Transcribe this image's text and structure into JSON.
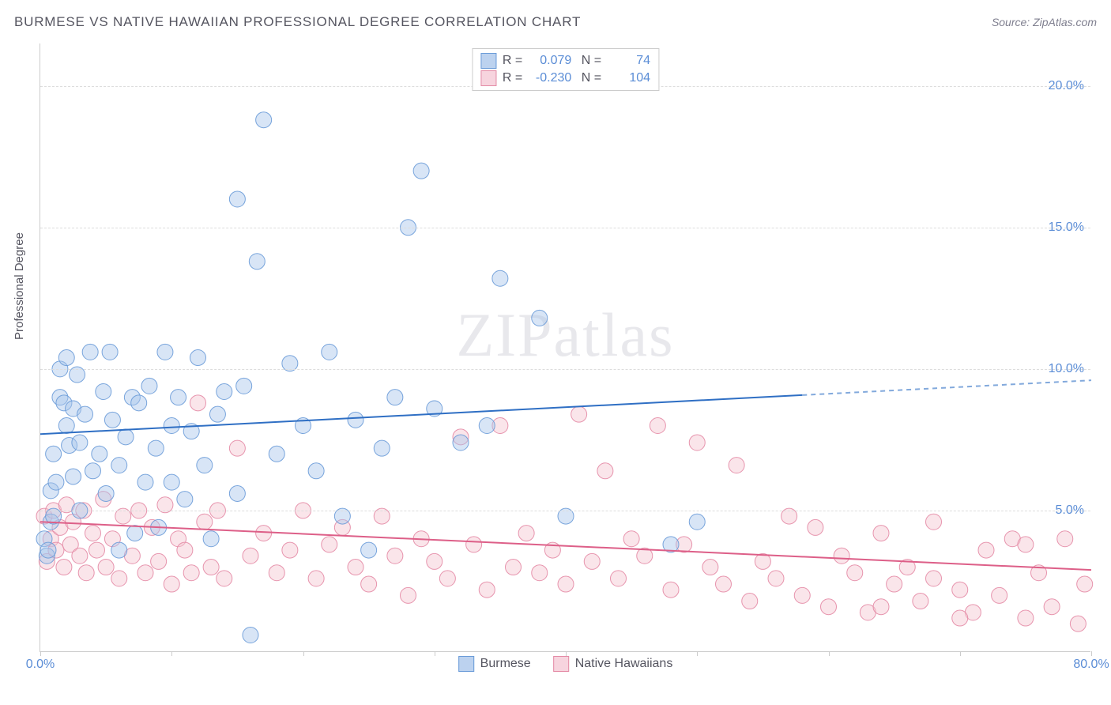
{
  "title": "BURMESE VS NATIVE HAWAIIAN PROFESSIONAL DEGREE CORRELATION CHART",
  "source": "Source: ZipAtlas.com",
  "watermark": "ZIPatlas",
  "y_axis_label": "Professional Degree",
  "chart": {
    "type": "scatter",
    "xlim": [
      0,
      80
    ],
    "ylim": [
      0,
      21.5
    ],
    "x_ticks_major": [
      0,
      10,
      20,
      30,
      40,
      50,
      60,
      70,
      80
    ],
    "x_tick_labels": {
      "0": "0.0%",
      "80": "80.0%"
    },
    "y_ticks": [
      5,
      10,
      15,
      20
    ],
    "y_tick_labels": {
      "5": "5.0%",
      "10": "10.0%",
      "15": "15.0%",
      "20": "20.0%"
    },
    "background_color": "#ffffff",
    "grid_color": "#dddddd",
    "axis_color": "#cccccc",
    "tick_label_color": "#5b8dd6",
    "marker_radius": 10,
    "marker_opacity": 0.45,
    "marker_stroke_opacity": 0.9,
    "series": [
      {
        "name": "Burmese",
        "color_fill": "#a9c6ec",
        "color_stroke": "#6a9bd8",
        "legend_swatch_fill": "#bcd2ef",
        "legend_swatch_border": "#6a9bd8",
        "R": "0.079",
        "N": "74",
        "trend": {
          "y_at_x0": 7.7,
          "y_at_x80": 9.6,
          "solid_until_x": 58,
          "color": "#2f6fc4",
          "width": 2
        },
        "points": [
          [
            0.3,
            4.0
          ],
          [
            0.5,
            3.4
          ],
          [
            0.6,
            3.6
          ],
          [
            0.8,
            4.6
          ],
          [
            0.8,
            5.7
          ],
          [
            1.0,
            4.8
          ],
          [
            1.0,
            7.0
          ],
          [
            1.2,
            6.0
          ],
          [
            1.5,
            9.0
          ],
          [
            1.5,
            10.0
          ],
          [
            1.8,
            8.8
          ],
          [
            2.0,
            8.0
          ],
          [
            2.0,
            10.4
          ],
          [
            2.2,
            7.3
          ],
          [
            2.5,
            6.2
          ],
          [
            2.5,
            8.6
          ],
          [
            2.8,
            9.8
          ],
          [
            3.0,
            5.0
          ],
          [
            3.0,
            7.4
          ],
          [
            3.4,
            8.4
          ],
          [
            3.8,
            10.6
          ],
          [
            4.0,
            6.4
          ],
          [
            4.5,
            7.0
          ],
          [
            4.8,
            9.2
          ],
          [
            5.0,
            5.6
          ],
          [
            5.3,
            10.6
          ],
          [
            5.5,
            8.2
          ],
          [
            6.0,
            3.6
          ],
          [
            6.0,
            6.6
          ],
          [
            6.5,
            7.6
          ],
          [
            7.0,
            9.0
          ],
          [
            7.2,
            4.2
          ],
          [
            7.5,
            8.8
          ],
          [
            8.0,
            6.0
          ],
          [
            8.3,
            9.4
          ],
          [
            8.8,
            7.2
          ],
          [
            9.0,
            4.4
          ],
          [
            9.5,
            10.6
          ],
          [
            10.0,
            6.0
          ],
          [
            10.0,
            8.0
          ],
          [
            10.5,
            9.0
          ],
          [
            11.0,
            5.4
          ],
          [
            11.5,
            7.8
          ],
          [
            12.0,
            10.4
          ],
          [
            12.5,
            6.6
          ],
          [
            13.0,
            4.0
          ],
          [
            13.5,
            8.4
          ],
          [
            14.0,
            9.2
          ],
          [
            15.0,
            5.6
          ],
          [
            15.0,
            16.0
          ],
          [
            15.5,
            9.4
          ],
          [
            16.0,
            0.6
          ],
          [
            16.5,
            13.8
          ],
          [
            17.0,
            18.8
          ],
          [
            18.0,
            7.0
          ],
          [
            19.0,
            10.2
          ],
          [
            20.0,
            8.0
          ],
          [
            21.0,
            6.4
          ],
          [
            22.0,
            10.6
          ],
          [
            23.0,
            4.8
          ],
          [
            24.0,
            8.2
          ],
          [
            25.0,
            3.6
          ],
          [
            26.0,
            7.2
          ],
          [
            27.0,
            9.0
          ],
          [
            28.0,
            15.0
          ],
          [
            29.0,
            17.0
          ],
          [
            30.0,
            8.6
          ],
          [
            32.0,
            7.4
          ],
          [
            34.0,
            8.0
          ],
          [
            35.0,
            13.2
          ],
          [
            38.0,
            11.8
          ],
          [
            40.0,
            4.8
          ],
          [
            48.0,
            3.8
          ],
          [
            50.0,
            4.6
          ]
        ]
      },
      {
        "name": "Native Hawaiians",
        "color_fill": "#f4c5d1",
        "color_stroke": "#e48aa5",
        "legend_swatch_fill": "#f7d4de",
        "legend_swatch_border": "#e48aa5",
        "R": "-0.230",
        "N": "104",
        "trend": {
          "y_at_x0": 4.6,
          "y_at_x80": 2.9,
          "solid_until_x": 80,
          "color": "#dd5f88",
          "width": 2
        },
        "points": [
          [
            0.3,
            4.8
          ],
          [
            0.5,
            3.2
          ],
          [
            0.8,
            4.0
          ],
          [
            1.0,
            5.0
          ],
          [
            1.2,
            3.6
          ],
          [
            1.5,
            4.4
          ],
          [
            1.8,
            3.0
          ],
          [
            2.0,
            5.2
          ],
          [
            2.3,
            3.8
          ],
          [
            2.5,
            4.6
          ],
          [
            3.0,
            3.4
          ],
          [
            3.3,
            5.0
          ],
          [
            3.5,
            2.8
          ],
          [
            4.0,
            4.2
          ],
          [
            4.3,
            3.6
          ],
          [
            4.8,
            5.4
          ],
          [
            5.0,
            3.0
          ],
          [
            5.5,
            4.0
          ],
          [
            6.0,
            2.6
          ],
          [
            6.3,
            4.8
          ],
          [
            7.0,
            3.4
          ],
          [
            7.5,
            5.0
          ],
          [
            8.0,
            2.8
          ],
          [
            8.5,
            4.4
          ],
          [
            9.0,
            3.2
          ],
          [
            9.5,
            5.2
          ],
          [
            10.0,
            2.4
          ],
          [
            10.5,
            4.0
          ],
          [
            11.0,
            3.6
          ],
          [
            11.5,
            2.8
          ],
          [
            12.0,
            8.8
          ],
          [
            12.5,
            4.6
          ],
          [
            13.0,
            3.0
          ],
          [
            13.5,
            5.0
          ],
          [
            14.0,
            2.6
          ],
          [
            15.0,
            7.2
          ],
          [
            16.0,
            3.4
          ],
          [
            17.0,
            4.2
          ],
          [
            18.0,
            2.8
          ],
          [
            19.0,
            3.6
          ],
          [
            20.0,
            5.0
          ],
          [
            21.0,
            2.6
          ],
          [
            22.0,
            3.8
          ],
          [
            23.0,
            4.4
          ],
          [
            24.0,
            3.0
          ],
          [
            25.0,
            2.4
          ],
          [
            26.0,
            4.8
          ],
          [
            27.0,
            3.4
          ],
          [
            28.0,
            2.0
          ],
          [
            29.0,
            4.0
          ],
          [
            30.0,
            3.2
          ],
          [
            31.0,
            2.6
          ],
          [
            32.0,
            7.6
          ],
          [
            33.0,
            3.8
          ],
          [
            34.0,
            2.2
          ],
          [
            35.0,
            8.0
          ],
          [
            36.0,
            3.0
          ],
          [
            37.0,
            4.2
          ],
          [
            38.0,
            2.8
          ],
          [
            39.0,
            3.6
          ],
          [
            40.0,
            2.4
          ],
          [
            41.0,
            8.4
          ],
          [
            42.0,
            3.2
          ],
          [
            43.0,
            6.4
          ],
          [
            44.0,
            2.6
          ],
          [
            45.0,
            4.0
          ],
          [
            46.0,
            3.4
          ],
          [
            47.0,
            8.0
          ],
          [
            48.0,
            2.2
          ],
          [
            49.0,
            3.8
          ],
          [
            50.0,
            7.4
          ],
          [
            51.0,
            3.0
          ],
          [
            52.0,
            2.4
          ],
          [
            53.0,
            6.6
          ],
          [
            54.0,
            1.8
          ],
          [
            55.0,
            3.2
          ],
          [
            56.0,
            2.6
          ],
          [
            57.0,
            4.8
          ],
          [
            58.0,
            2.0
          ],
          [
            59.0,
            4.4
          ],
          [
            60.0,
            1.6
          ],
          [
            61.0,
            3.4
          ],
          [
            62.0,
            2.8
          ],
          [
            63.0,
            1.4
          ],
          [
            64.0,
            4.2
          ],
          [
            65.0,
            2.4
          ],
          [
            66.0,
            3.0
          ],
          [
            67.0,
            1.8
          ],
          [
            68.0,
            4.6
          ],
          [
            70.0,
            2.2
          ],
          [
            71.0,
            1.4
          ],
          [
            72.0,
            3.6
          ],
          [
            73.0,
            2.0
          ],
          [
            74.0,
            4.0
          ],
          [
            75.0,
            1.2
          ],
          [
            76.0,
            2.8
          ],
          [
            77.0,
            1.6
          ],
          [
            78.0,
            4.0
          ],
          [
            79.0,
            1.0
          ],
          [
            79.5,
            2.4
          ],
          [
            75.0,
            3.8
          ],
          [
            70.0,
            1.2
          ],
          [
            68.0,
            2.6
          ],
          [
            64.0,
            1.6
          ]
        ]
      }
    ]
  }
}
